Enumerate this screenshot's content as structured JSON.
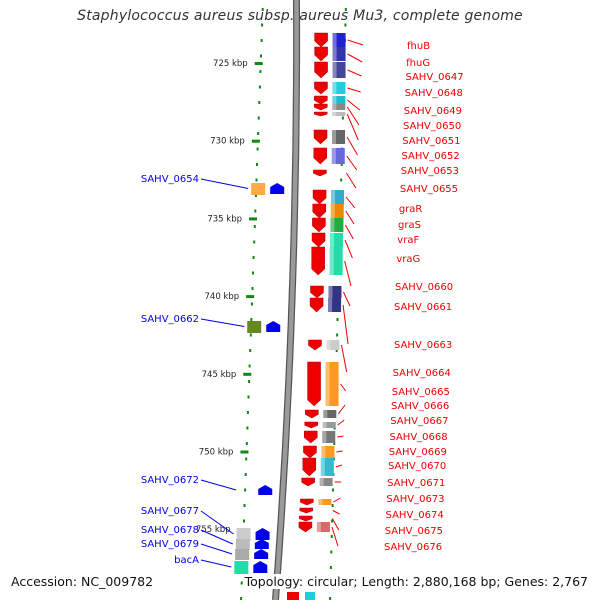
{
  "title": "Staphylococcus aureus subsp. aureus Mu3, complete genome",
  "footer": {
    "accession": "Accession: NC_009782",
    "topology": "Topology: circular; Length: 2,880,168 bp; Genes: 2,767"
  },
  "scale_labels": [
    {
      "label": "725 kbp",
      "kbp": 725
    },
    {
      "label": "730 kbp",
      "kbp": 730
    },
    {
      "label": "735 kbp",
      "kbp": 735
    },
    {
      "label": "740 kbp",
      "kbp": 740
    },
    {
      "label": "745 kbp",
      "kbp": 745
    },
    {
      "label": "750 kbp",
      "kbp": 750
    },
    {
      "label": "755 kbp",
      "kbp": 755
    }
  ],
  "reverse_genes": [
    {
      "label": "SAHV_0654",
      "color": "#0000ee"
    },
    {
      "label": "SAHV_0662",
      "color": "#0000ee"
    },
    {
      "label": "SAHV_0672",
      "color": "#0000ee"
    },
    {
      "label": "SAHV_0677",
      "color": "#0000ee"
    },
    {
      "label": "SAHV_0678",
      "color": "#0000ee"
    },
    {
      "label": "SAHV_0679",
      "color": "#0000ee"
    },
    {
      "label": "bacA",
      "color": "#0000ee"
    }
  ],
  "forward_genes": [
    {
      "label": "fhuB",
      "color": "#ee0000"
    },
    {
      "label": "fhuG",
      "color": "#ee0000"
    },
    {
      "label": "SAHV_0647",
      "color": "#ee0000"
    },
    {
      "label": "SAHV_0648",
      "color": "#ee0000"
    },
    {
      "label": "SAHV_0649",
      "color": "#ee0000"
    },
    {
      "label": "SAHV_0650",
      "color": "#ee0000"
    },
    {
      "label": "SAHV_0651",
      "color": "#ee0000"
    },
    {
      "label": "SAHV_0652",
      "color": "#ee0000"
    },
    {
      "label": "SAHV_0653",
      "color": "#ee0000"
    },
    {
      "label": "SAHV_0655",
      "color": "#ee0000"
    },
    {
      "label": "graR",
      "color": "#ee0000"
    },
    {
      "label": "graS",
      "color": "#ee0000"
    },
    {
      "label": "vraF",
      "color": "#ee0000"
    },
    {
      "label": "vraG",
      "color": "#ee0000"
    },
    {
      "label": "SAHV_0660",
      "color": "#ee0000"
    },
    {
      "label": "SAHV_0661",
      "color": "#ee0000"
    },
    {
      "label": "SAHV_0663",
      "color": "#ee0000"
    },
    {
      "label": "SAHV_0664",
      "color": "#ee0000"
    },
    {
      "label": "SAHV_0665",
      "color": "#ee0000"
    },
    {
      "label": "SAHV_0666",
      "color": "#ee0000"
    },
    {
      "label": "SAHV_0667",
      "color": "#ee0000"
    },
    {
      "label": "SAHV_0668",
      "color": "#ee0000"
    },
    {
      "label": "SAHV_0669",
      "color": "#ee0000"
    },
    {
      "label": "SAHV_0670",
      "color": "#ee0000"
    },
    {
      "label": "SAHV_0671",
      "color": "#ee0000"
    },
    {
      "label": "SAHV_0673",
      "color": "#ee0000"
    },
    {
      "label": "SAHV_0674",
      "color": "#ee0000"
    },
    {
      "label": "SAHV_0675",
      "color": "#ee0000"
    },
    {
      "label": "SAHV_0676",
      "color": "#ee0000"
    }
  ],
  "colors": {
    "forward": "#ee0000",
    "reverse": "#0000ee",
    "backbone": "#888888",
    "tick": "#118811"
  }
}
